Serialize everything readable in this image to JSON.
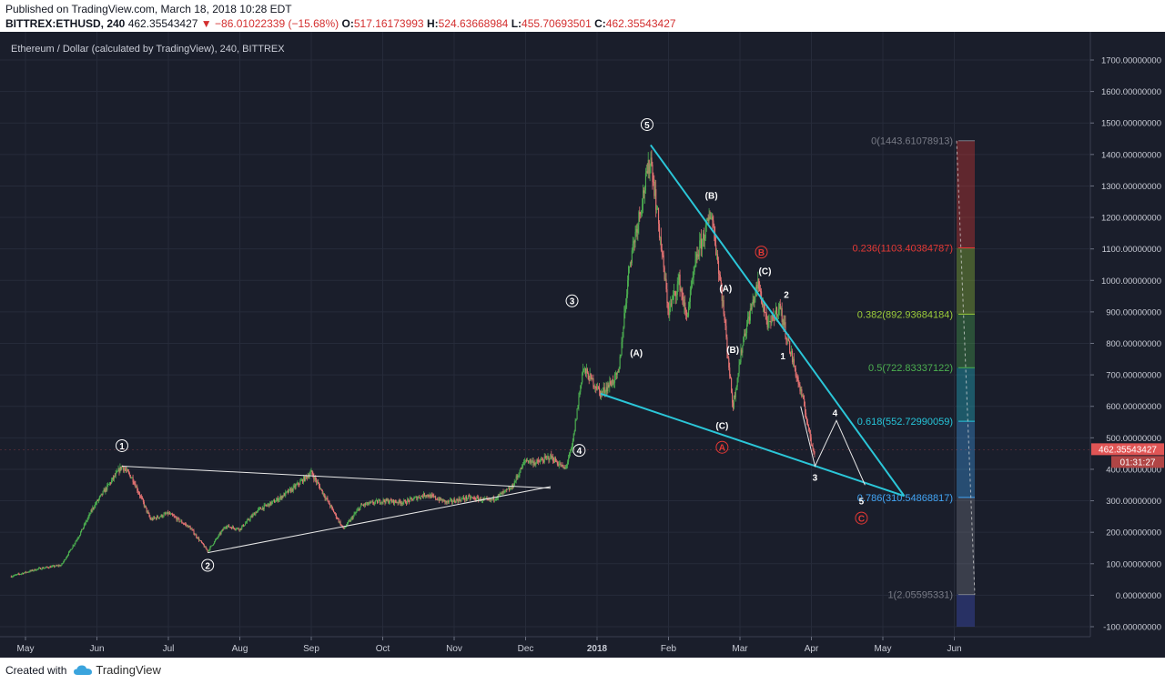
{
  "header": {
    "published": "Published on TradingView.com, March 18, 2018 10:28 EDT",
    "symbol_line_prefix": "BITTREX:ETHUSD, 240",
    "last": "462.35543427",
    "change": "−86.01022339 (−15.68%)",
    "o_label": "O:",
    "o": "517.16173993",
    "h_label": "H:",
    "h": "524.63668984",
    "l_label": "L:",
    "l": "455.70693501",
    "c_label": "C:",
    "c": "462.35543427"
  },
  "footer": {
    "created_with": "Created with",
    "brand": "TradingView"
  },
  "colors": {
    "bg": "#1a1e2b",
    "grid": "#262b3a",
    "up": "#4caf50",
    "down": "#e57373",
    "trend": "#2bc6d8",
    "white": "#e8e8e8"
  },
  "chart_data": {
    "type": "candlestick",
    "title": "Ethereum / Dollar (calculated by TradingView), 240, BITTREX",
    "ylim": [
      -100,
      1700
    ],
    "y_ticks": [
      {
        "v": 1700,
        "label": "1700.00000000"
      },
      {
        "v": 1600,
        "label": "1600.00000000"
      },
      {
        "v": 1500,
        "label": "1500.00000000"
      },
      {
        "v": 1400,
        "label": "1400.00000000"
      },
      {
        "v": 1300,
        "label": "1300.00000000"
      },
      {
        "v": 1200,
        "label": "1200.00000000"
      },
      {
        "v": 1100,
        "label": "1100.00000000"
      },
      {
        "v": 1000,
        "label": "1000.00000000"
      },
      {
        "v": 900,
        "label": "900.00000000"
      },
      {
        "v": 800,
        "label": "800.00000000"
      },
      {
        "v": 700,
        "label": "700.00000000"
      },
      {
        "v": 600,
        "label": "600.00000000"
      },
      {
        "v": 500,
        "label": "500.00000000"
      },
      {
        "v": 400,
        "label": "400.00000000"
      },
      {
        "v": 300,
        "label": "300.00000000"
      },
      {
        "v": 200,
        "label": "200.00000000"
      },
      {
        "v": 100,
        "label": "100.00000000"
      },
      {
        "v": 0,
        "label": "0.00000000"
      },
      {
        "v": -100,
        "label": "-100.00000000"
      }
    ],
    "x_ticks": [
      {
        "m": 0,
        "label": "May"
      },
      {
        "m": 1,
        "label": "Jun"
      },
      {
        "m": 2,
        "label": "Jul"
      },
      {
        "m": 3,
        "label": "Aug"
      },
      {
        "m": 4,
        "label": "Sep"
      },
      {
        "m": 5,
        "label": "Oct"
      },
      {
        "m": 6,
        "label": "Nov"
      },
      {
        "m": 7,
        "label": "Dec"
      },
      {
        "m": 8,
        "label": "2018"
      },
      {
        "m": 9,
        "label": "Feb"
      },
      {
        "m": 10,
        "label": "Mar"
      },
      {
        "m": 11,
        "label": "Apr"
      },
      {
        "m": 12,
        "label": "May"
      },
      {
        "m": 13,
        "label": "Jun"
      }
    ],
    "price_path": [
      [
        -0.2,
        60
      ],
      [
        0.2,
        85
      ],
      [
        0.5,
        95
      ],
      [
        0.75,
        190
      ],
      [
        0.95,
        280
      ],
      [
        1.1,
        330
      ],
      [
        1.35,
        410
      ],
      [
        1.5,
        370
      ],
      [
        1.75,
        240
      ],
      [
        2.0,
        260
      ],
      [
        2.3,
        215
      ],
      [
        2.55,
        140
      ],
      [
        2.8,
        220
      ],
      [
        3.0,
        210
      ],
      [
        3.25,
        270
      ],
      [
        3.5,
        300
      ],
      [
        3.75,
        340
      ],
      [
        4.0,
        390
      ],
      [
        4.15,
        330
      ],
      [
        4.45,
        210
      ],
      [
        4.7,
        285
      ],
      [
        5.0,
        300
      ],
      [
        5.3,
        295
      ],
      [
        5.6,
        320
      ],
      [
        5.9,
        295
      ],
      [
        6.2,
        310
      ],
      [
        6.5,
        300
      ],
      [
        6.8,
        340
      ],
      [
        7.0,
        430
      ],
      [
        7.15,
        420
      ],
      [
        7.35,
        440
      ],
      [
        7.55,
        400
      ],
      [
        7.65,
        470
      ],
      [
        7.8,
        720
      ],
      [
        8.0,
        660
      ],
      [
        8.05,
        640
      ],
      [
        8.3,
        700
      ],
      [
        8.45,
        1050
      ],
      [
        8.65,
        1280
      ],
      [
        8.75,
        1390
      ],
      [
        8.85,
        1200
      ],
      [
        9.0,
        900
      ],
      [
        9.15,
        1000
      ],
      [
        9.25,
        880
      ],
      [
        9.4,
        1080
      ],
      [
        9.55,
        1180
      ],
      [
        9.6,
        1220
      ],
      [
        9.75,
        950
      ],
      [
        9.9,
        600
      ],
      [
        10.05,
        820
      ],
      [
        10.25,
        990
      ],
      [
        10.4,
        850
      ],
      [
        10.55,
        920
      ],
      [
        10.7,
        780
      ],
      [
        10.9,
        600
      ],
      [
        11.0,
        480
      ],
      [
        11.05,
        455
      ]
    ],
    "trendlines": [
      {
        "name": "triangle-top",
        "color": "white",
        "x1": 1.35,
        "y1": 410,
        "x2": 7.35,
        "y2": 340
      },
      {
        "name": "triangle-bottom",
        "color": "white",
        "x1": 2.55,
        "y1": 135,
        "x2": 7.35,
        "y2": 345
      },
      {
        "name": "wedge-top",
        "color": "cyan",
        "x1": 8.75,
        "y1": 1430,
        "x2": 12.3,
        "y2": 315
      },
      {
        "name": "wedge-bottom",
        "color": "cyan",
        "x1": 8.05,
        "y1": 640,
        "x2": 12.3,
        "y2": 315
      }
    ],
    "projection": [
      [
        10.85,
        600
      ],
      [
        11.05,
        410
      ],
      [
        11.35,
        555
      ],
      [
        11.75,
        350
      ]
    ],
    "fib_levels": [
      {
        "label": "0(1443.61078913)",
        "v": 1443.61078913,
        "color": "#787b86"
      },
      {
        "label": "0.236(1103.40384787)",
        "v": 1103.40384787,
        "color": "#e53935"
      },
      {
        "label": "0.382(892.93684184)",
        "v": 892.93684184,
        "color": "#9ccc3a"
      },
      {
        "label": "0.5(722.83337122)",
        "v": 722.83337122,
        "color": "#4caf50"
      },
      {
        "label": "0.618(552.72990059)",
        "v": 552.72990059,
        "color": "#26c6da"
      },
      {
        "label": "0.786(310.54868817)",
        "v": 310.54868817,
        "color": "#42a5f5"
      },
      {
        "label": "1(2.05595331)",
        "v": 2.05595331,
        "color": "#787b86"
      }
    ],
    "wave_labels": [
      {
        "text": "1",
        "circle": true,
        "color": "white",
        "x": 1.35,
        "y": 475
      },
      {
        "text": "2",
        "circle": true,
        "color": "white",
        "x": 2.55,
        "y": 95
      },
      {
        "text": "3",
        "circle": true,
        "color": "white",
        "x": 7.65,
        "y": 935
      },
      {
        "text": "4",
        "circle": true,
        "color": "white",
        "x": 7.75,
        "y": 460
      },
      {
        "text": "5",
        "circle": true,
        "color": "white",
        "x": 8.7,
        "y": 1495
      },
      {
        "text": "(A)",
        "circle": false,
        "color": "white",
        "x": 8.55,
        "y": 770
      },
      {
        "text": "(B)",
        "circle": false,
        "color": "white",
        "x": 9.6,
        "y": 1270
      },
      {
        "text": "(C)",
        "circle": false,
        "color": "white",
        "x": 9.75,
        "y": 540
      },
      {
        "text": "(A)",
        "circle": false,
        "color": "white",
        "x": 9.8,
        "y": 975
      },
      {
        "text": "(B)",
        "circle": false,
        "color": "white",
        "x": 9.9,
        "y": 780
      },
      {
        "text": "(C)",
        "circle": false,
        "color": "white",
        "x": 10.35,
        "y": 1030
      },
      {
        "text": "A",
        "circle": true,
        "color": "red",
        "x": 9.75,
        "y": 470
      },
      {
        "text": "B",
        "circle": true,
        "color": "red",
        "x": 10.3,
        "y": 1090
      },
      {
        "text": "C",
        "circle": true,
        "color": "red",
        "x": 11.7,
        "y": 245
      },
      {
        "text": "1",
        "circle": false,
        "color": "white",
        "x": 10.6,
        "y": 760
      },
      {
        "text": "2",
        "circle": false,
        "color": "white",
        "x": 10.65,
        "y": 955
      },
      {
        "text": "3",
        "circle": false,
        "color": "white",
        "x": 11.05,
        "y": 375
      },
      {
        "text": "4",
        "circle": false,
        "color": "white",
        "x": 11.33,
        "y": 580
      },
      {
        "text": "5",
        "circle": false,
        "color": "white",
        "x": 11.7,
        "y": 300
      }
    ],
    "last_price_tag": "462.35543427",
    "countdown_tag": "01:31:27"
  }
}
